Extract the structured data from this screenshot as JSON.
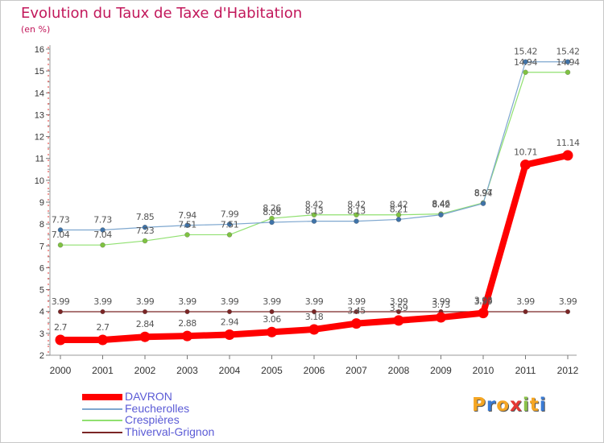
{
  "title": "Evolution du Taux de Taxe d'Habitation",
  "subtitle": "(en %)",
  "logo": {
    "letters": [
      "P",
      "r",
      "o",
      "x",
      "i",
      "t",
      "i"
    ],
    "colors": [
      "#f5a623",
      "#3a7bd5",
      "#f5a623",
      "#e53935",
      "#8bc34a",
      "#f5a623",
      "#3a7bd5"
    ]
  },
  "chart_data": {
    "type": "line",
    "x": [
      "2000",
      "2001",
      "2002",
      "2003",
      "2004",
      "2005",
      "2006",
      "2007",
      "2008",
      "2009",
      "2010",
      "2011",
      "2012"
    ],
    "ylim": [
      2,
      16
    ],
    "yticks": [
      2,
      3,
      4,
      5,
      6,
      7,
      8,
      9,
      10,
      11,
      12,
      13,
      14,
      15,
      16
    ],
    "grid": false,
    "legend_position": "bottom-left",
    "series": [
      {
        "name": "Thiverval-Grignon",
        "color": "#7b2525",
        "width": 1.2,
        "marker": 2.8,
        "values": [
          3.99,
          3.99,
          3.99,
          3.99,
          3.99,
          3.99,
          3.99,
          3.99,
          3.99,
          3.99,
          3.99,
          3.99,
          3.99
        ],
        "labels": [
          "3.99",
          "3.99",
          "3.99",
          "3.99",
          "3.99",
          "3.99",
          "3.99",
          "3.99",
          "3.99",
          "3.99",
          "3.99",
          "3.99",
          "3.99"
        ]
      },
      {
        "name": "Crespières",
        "color": "#90e070",
        "width": 1.2,
        "marker": 3,
        "markerColor": "#7fc241",
        "values": [
          7.04,
          7.04,
          7.23,
          7.51,
          7.51,
          8.26,
          8.42,
          8.42,
          8.42,
          8.46,
          8.97,
          14.94,
          14.94
        ],
        "labels": [
          "7.04",
          "7.04",
          "7.23",
          "7.51",
          "7.51",
          "8.26",
          "8.42",
          "8.42",
          "8.42",
          "8.46",
          "8.97",
          "14.94",
          "14.94"
        ]
      },
      {
        "name": "Feucherolles",
        "color": "#7ea7cf",
        "width": 1.2,
        "marker": 3,
        "markerColor": "#3f73a8",
        "values": [
          7.73,
          7.73,
          7.85,
          7.94,
          7.99,
          8.08,
          8.13,
          8.13,
          8.21,
          8.42,
          8.94,
          15.42,
          15.42
        ],
        "labels": [
          "7.73",
          "7.73",
          "7.85",
          "7.94",
          "7.99",
          "8.08",
          "8.13",
          "8.13",
          "8.21",
          "8.42",
          "8.94",
          "15.42",
          "15.42"
        ]
      },
      {
        "name": "DAVRON",
        "color": "#ff0000",
        "width": 8,
        "marker": 6.5,
        "markerColor": "#ff0000",
        "values": [
          2.7,
          2.7,
          2.84,
          2.88,
          2.94,
          3.06,
          3.18,
          3.45,
          3.59,
          3.73,
          3.93,
          10.71,
          11.14
        ],
        "labels": [
          "2.7",
          "2.7",
          "2.84",
          "2.88",
          "2.94",
          "3.06",
          "3.18",
          "3.45",
          "3.59",
          "3.73",
          "3.93",
          "10.71",
          "11.14"
        ]
      }
    ],
    "legend_order": [
      "DAVRON",
      "Feucherolles",
      "Crespières",
      "Thiverval-Grignon"
    ]
  }
}
